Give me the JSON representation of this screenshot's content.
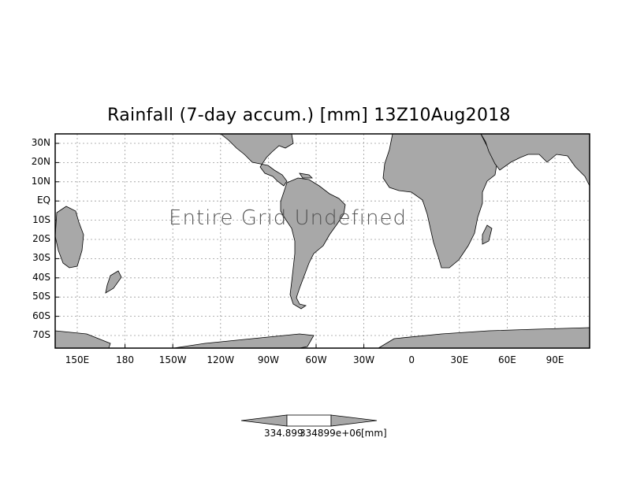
{
  "title": "Rainfall (7-day accum.) [mm] 13Z10Aug2018",
  "overlay_message": "Entire Grid Undefined",
  "colors": {
    "land": "#a8a8a8",
    "ocean": "#ffffff",
    "grid": "#9a9a9a",
    "frame": "#000000"
  },
  "map": {
    "lat_ticks": [
      "30N",
      "20N",
      "10N",
      "EQ",
      "10S",
      "20S",
      "30S",
      "40S",
      "50S",
      "60S",
      "70S"
    ],
    "lon_ticks": [
      "150E",
      "180",
      "150W",
      "120W",
      "90W",
      "60W",
      "30W",
      "0",
      "30E",
      "60E",
      "90E"
    ]
  },
  "colorbar": {
    "left_value": "334.899",
    "right_value": "334899e+06",
    "units": "[mm]"
  }
}
